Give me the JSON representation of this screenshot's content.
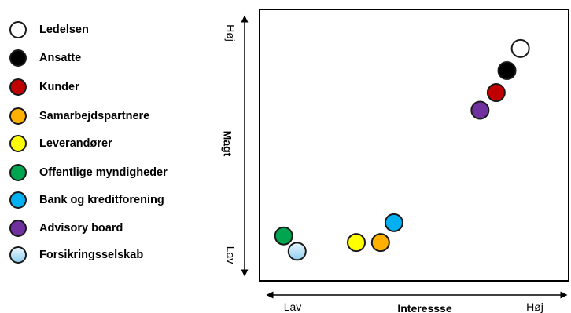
{
  "chart_data": {
    "type": "scatter",
    "title": "",
    "xlabel": "Interessse",
    "ylabel": "Magt",
    "x_low": "Lav",
    "x_high": "Høj",
    "y_low": "Lav",
    "y_high": "Høj",
    "xlim": [
      0,
      100
    ],
    "ylim": [
      0,
      100
    ],
    "grid": false,
    "legend_position": "left",
    "series": [
      {
        "name": "Ledelsen",
        "color": "#ffffff",
        "x": [
          92
        ],
        "y": [
          94
        ]
      },
      {
        "name": "Ansatte",
        "color": "#000000",
        "x": [
          87
        ],
        "y": [
          84
        ]
      },
      {
        "name": "Kunder",
        "color": "#c00000",
        "x": [
          83
        ],
        "y": [
          74
        ]
      },
      {
        "name": "Samarbejdspartnere",
        "color": "#ffb000",
        "x": [
          40
        ],
        "y": [
          6
        ]
      },
      {
        "name": "Leverandører",
        "color": "#ffff00",
        "x": [
          31
        ],
        "y": [
          6
        ]
      },
      {
        "name": "Offentlige myndigheder",
        "color": "#00a550",
        "x": [
          4
        ],
        "y": [
          9
        ]
      },
      {
        "name": "Bank og kreditforening",
        "color": "#00b0f0",
        "x": [
          45
        ],
        "y": [
          15
        ]
      },
      {
        "name": "Advisory board",
        "color": "#7030a0",
        "x": [
          77
        ],
        "y": [
          66
        ]
      },
      {
        "name": "Forsikringsselskab",
        "color": "#bde0f5",
        "x": [
          9
        ],
        "y": [
          2
        ]
      }
    ]
  }
}
